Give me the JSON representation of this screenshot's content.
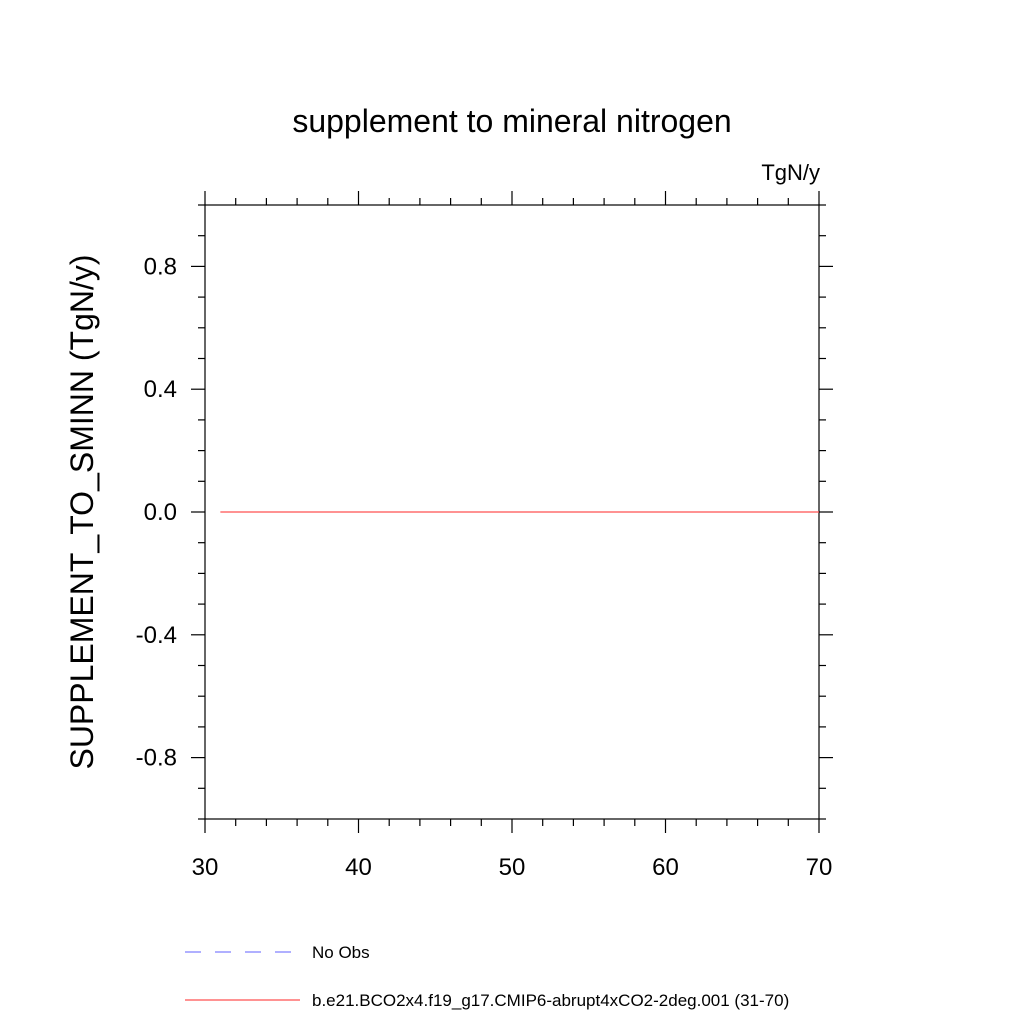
{
  "chart_data": {
    "type": "line",
    "title": "supplement to mineral nitrogen",
    "units": "TgN/y",
    "xlabel": "",
    "ylabel": "SUPPLEMENT_TO_SMINN  (TgN/y)",
    "xlim": [
      30,
      70
    ],
    "ylim": [
      -1.0,
      1.0
    ],
    "x_ticks": [
      30,
      40,
      50,
      60,
      70
    ],
    "x_tick_labels": [
      "30",
      "40",
      "50",
      "60",
      "70"
    ],
    "y_ticks": [
      0.8,
      0.4,
      0.0,
      -0.4,
      -0.8
    ],
    "y_tick_labels": [
      "0.8",
      "0.4",
      "0.0",
      "-0.4",
      "-0.8"
    ],
    "grid": false,
    "legend_position": "bottom",
    "series": [
      {
        "name": "No Obs",
        "color": "#8080ff",
        "style": "dashed",
        "x": [],
        "values": []
      },
      {
        "name": "b.e21.BCO2x4.f19_g17.CMIP6-abrupt4xCO2-2deg.001 (31-70)",
        "color": "#ff5050",
        "style": "solid",
        "x": [
          31,
          70
        ],
        "values": [
          0.0,
          0.0
        ]
      }
    ]
  }
}
